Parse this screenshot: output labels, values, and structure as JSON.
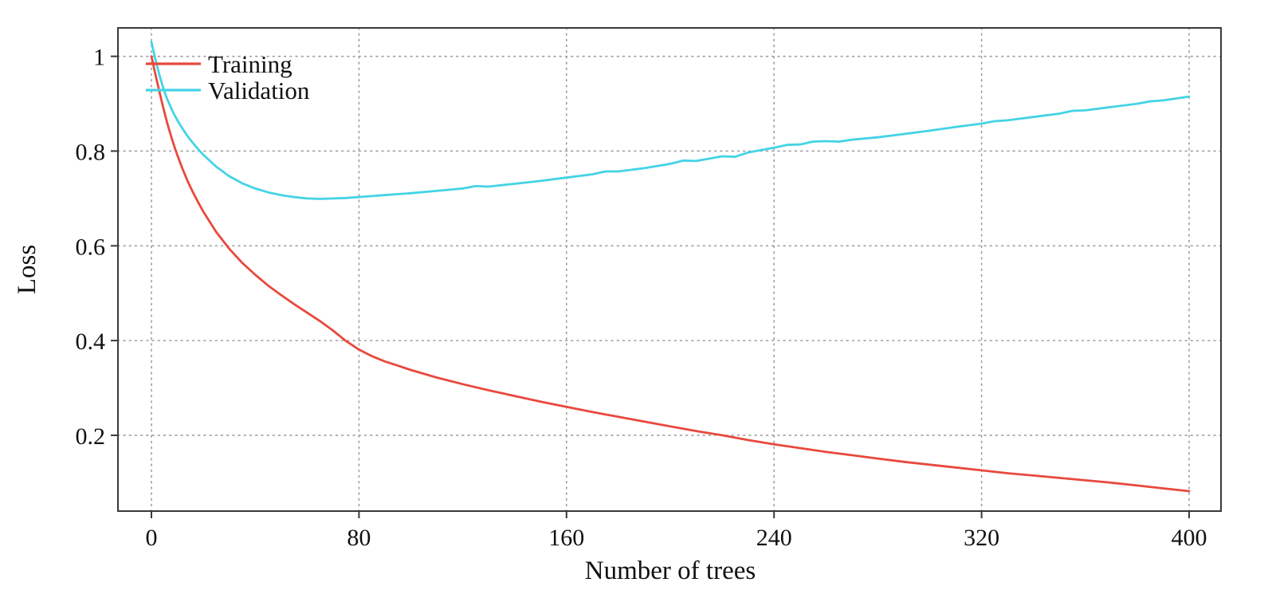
{
  "chart_data": {
    "type": "line",
    "xlabel": "Number of trees",
    "ylabel": "Loss",
    "xlim": [
      0,
      400
    ],
    "ylim": [
      0.04,
      1.06
    ],
    "xticks": [
      0,
      80,
      160,
      240,
      320,
      400
    ],
    "xtick_labels": [
      "0",
      "80",
      "160",
      "240",
      "320",
      "400"
    ],
    "yticks": [
      0.2,
      0.4,
      0.6,
      0.8,
      1
    ],
    "ytick_labels": [
      "0.2",
      "0.4",
      "0.6",
      "0.8",
      "1"
    ],
    "grid": "dotted",
    "legend_position": "top-left",
    "background_color": "#ffffff",
    "grid_color": "#9c9c9c",
    "axis_color": "#3a3a3a",
    "text_color": "#111111",
    "series": [
      {
        "name": "Training",
        "color": "#e8493d",
        "points": [
          [
            0,
            1.0
          ],
          [
            1,
            0.975
          ],
          [
            2,
            0.951
          ],
          [
            3,
            0.927
          ],
          [
            4,
            0.904
          ],
          [
            5,
            0.882
          ],
          [
            6,
            0.861
          ],
          [
            7,
            0.842
          ],
          [
            8,
            0.824
          ],
          [
            9,
            0.807
          ],
          [
            10,
            0.791
          ],
          [
            12,
            0.762
          ],
          [
            14,
            0.736
          ],
          [
            16,
            0.713
          ],
          [
            18,
            0.692
          ],
          [
            20,
            0.672
          ],
          [
            25,
            0.629
          ],
          [
            30,
            0.594
          ],
          [
            35,
            0.564
          ],
          [
            40,
            0.539
          ],
          [
            45,
            0.516
          ],
          [
            50,
            0.496
          ],
          [
            55,
            0.477
          ],
          [
            60,
            0.459
          ],
          [
            65,
            0.441
          ],
          [
            70,
            0.421
          ],
          [
            75,
            0.399
          ],
          [
            80,
            0.381
          ],
          [
            85,
            0.367
          ],
          [
            90,
            0.356
          ],
          [
            95,
            0.347
          ],
          [
            100,
            0.338
          ],
          [
            110,
            0.322
          ],
          [
            120,
            0.308
          ],
          [
            130,
            0.295
          ],
          [
            140,
            0.283
          ],
          [
            150,
            0.271
          ],
          [
            160,
            0.26
          ],
          [
            170,
            0.249
          ],
          [
            180,
            0.239
          ],
          [
            190,
            0.229
          ],
          [
            200,
            0.219
          ],
          [
            210,
            0.209
          ],
          [
            220,
            0.2
          ],
          [
            230,
            0.19
          ],
          [
            240,
            0.181
          ],
          [
            250,
            0.173
          ],
          [
            260,
            0.165
          ],
          [
            270,
            0.158
          ],
          [
            280,
            0.151
          ],
          [
            290,
            0.144
          ],
          [
            300,
            0.138
          ],
          [
            310,
            0.132
          ],
          [
            320,
            0.126
          ],
          [
            330,
            0.12
          ],
          [
            340,
            0.115
          ],
          [
            350,
            0.11
          ],
          [
            360,
            0.105
          ],
          [
            370,
            0.1
          ],
          [
            380,
            0.094
          ],
          [
            390,
            0.088
          ],
          [
            400,
            0.082
          ]
        ]
      },
      {
        "name": "Validation",
        "color": "#44d3e6",
        "points": [
          [
            0,
            1.03
          ],
          [
            1,
            1.006
          ],
          [
            2,
            0.983
          ],
          [
            3,
            0.962
          ],
          [
            4,
            0.943
          ],
          [
            5,
            0.926
          ],
          [
            6,
            0.911
          ],
          [
            7,
            0.898
          ],
          [
            8,
            0.886
          ],
          [
            9,
            0.875
          ],
          [
            10,
            0.865
          ],
          [
            12,
            0.847
          ],
          [
            14,
            0.831
          ],
          [
            16,
            0.817
          ],
          [
            18,
            0.804
          ],
          [
            20,
            0.792
          ],
          [
            25,
            0.767
          ],
          [
            30,
            0.747
          ],
          [
            35,
            0.732
          ],
          [
            40,
            0.721
          ],
          [
            45,
            0.713
          ],
          [
            50,
            0.707
          ],
          [
            55,
            0.703
          ],
          [
            60,
            0.7
          ],
          [
            65,
            0.699
          ],
          [
            70,
            0.7
          ],
          [
            75,
            0.701
          ],
          [
            80,
            0.703
          ],
          [
            85,
            0.705
          ],
          [
            90,
            0.707
          ],
          [
            95,
            0.709
          ],
          [
            100,
            0.711
          ],
          [
            110,
            0.716
          ],
          [
            120,
            0.721
          ],
          [
            125,
            0.726
          ],
          [
            130,
            0.725
          ],
          [
            140,
            0.731
          ],
          [
            150,
            0.737
          ],
          [
            160,
            0.744
          ],
          [
            170,
            0.751
          ],
          [
            175,
            0.757
          ],
          [
            180,
            0.757
          ],
          [
            190,
            0.764
          ],
          [
            200,
            0.773
          ],
          [
            205,
            0.78
          ],
          [
            210,
            0.779
          ],
          [
            215,
            0.784
          ],
          [
            220,
            0.789
          ],
          [
            225,
            0.788
          ],
          [
            230,
            0.797
          ],
          [
            240,
            0.807
          ],
          [
            245,
            0.813
          ],
          [
            250,
            0.814
          ],
          [
            255,
            0.82
          ],
          [
            260,
            0.821
          ],
          [
            265,
            0.82
          ],
          [
            270,
            0.824
          ],
          [
            280,
            0.829
          ],
          [
            290,
            0.836
          ],
          [
            300,
            0.843
          ],
          [
            310,
            0.851
          ],
          [
            320,
            0.858
          ],
          [
            325,
            0.863
          ],
          [
            330,
            0.865
          ],
          [
            340,
            0.872
          ],
          [
            350,
            0.879
          ],
          [
            355,
            0.885
          ],
          [
            360,
            0.886
          ],
          [
            370,
            0.893
          ],
          [
            380,
            0.9
          ],
          [
            385,
            0.905
          ],
          [
            390,
            0.907
          ],
          [
            400,
            0.915
          ]
        ]
      }
    ]
  }
}
